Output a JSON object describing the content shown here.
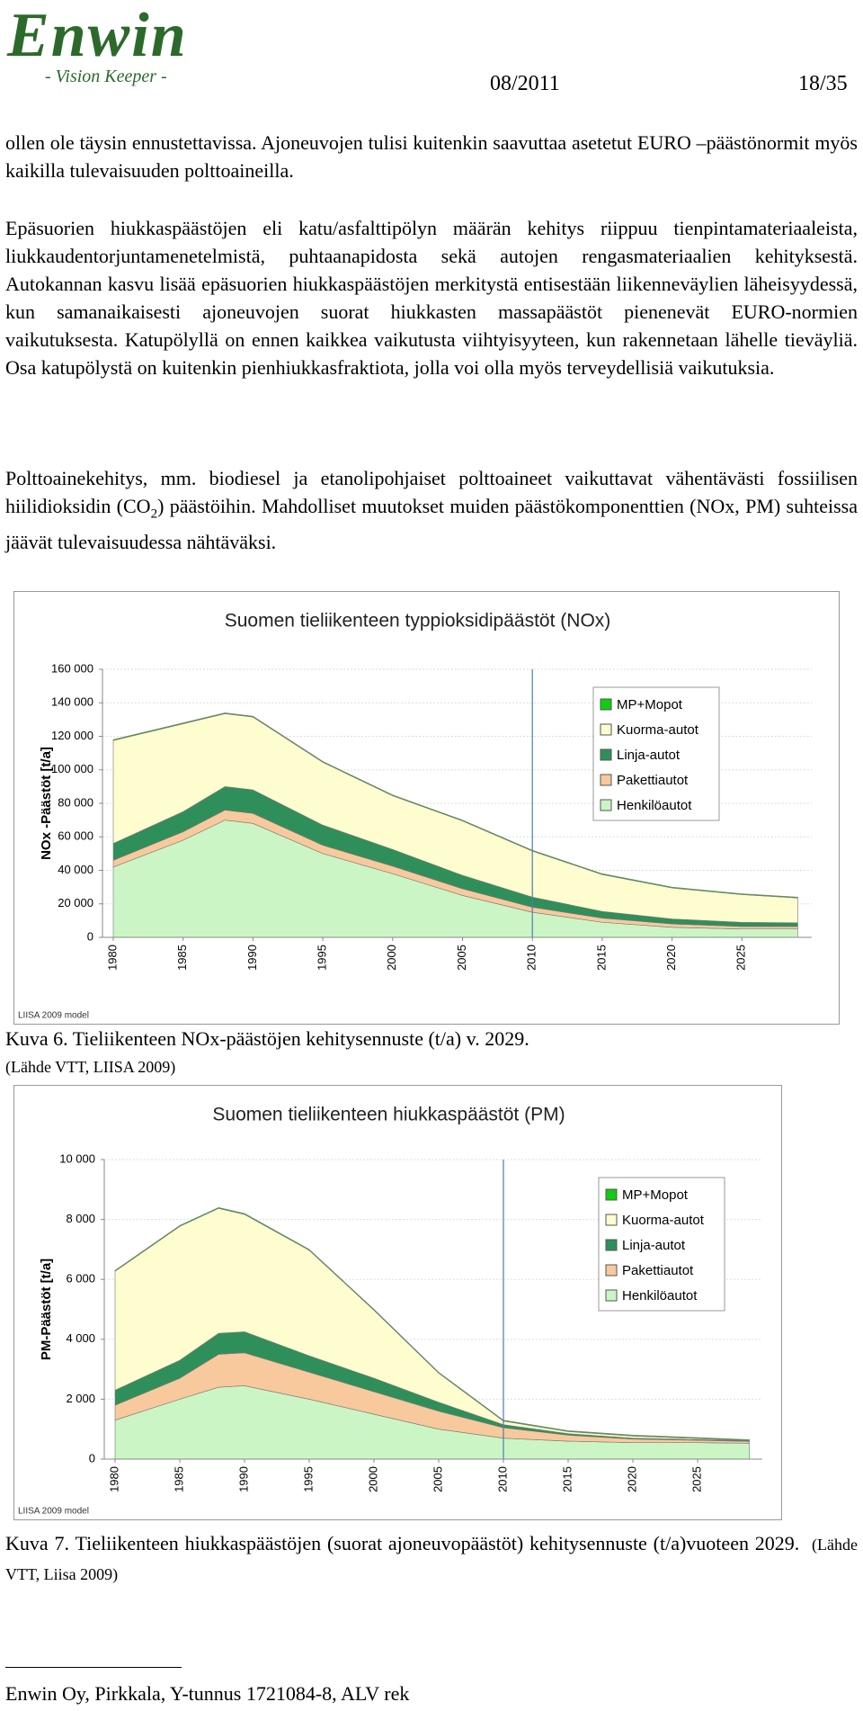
{
  "header": {
    "logo": "Enwin",
    "tagline": "- Vision Keeper -",
    "date": "08/2011",
    "page": "18/35"
  },
  "paragraphs": [
    "ollen ole täysin ennustettavissa. Ajoneuvojen tulisi kuitenkin saavuttaa asetetut EURO –päästönormit myös kaikilla tulevaisuuden polttoaineilla.",
    "Epäsuorien hiukkaspäästöjen eli katu/asfalttipölyn määrän kehitys riippuu tienpintamateriaaleista, liukkaudentorjuntamenetelmistä, puhtaanapidosta sekä autojen rengasmateriaalien kehityksestä. Autokannan kasvu lisää epäsuorien hiukkaspäästöjen merkitystä entisestään liikenneväylien läheisyydessä, kun samanaikaisesti ajoneuvojen suorat hiukkasten massapäästöt pienenevät EURO-normien vaikutuksesta. Katupölyllä on ennen kaikkea vaikutusta viihtyisyyteen, kun rakennetaan lähelle tieväyliä. Osa katupölystä on kuitenkin pienhiukkasfraktiota, jolla voi olla myös terveydellisiä vaikutuksia.",
    {
      "before": "Polttoainekehitys, mm. biodiesel ja etanolipohjaiset polttoaineet vaikuttavat vähentävästi fossiilisen hiilidioksidin (CO",
      "sub": "2",
      "after": ") päästöihin. Mahdolliset muutokset muiden päästökomponenttien (NOx, PM) suhteissa jäävät tulevaisuudessa nähtäväksi."
    }
  ],
  "chart_data": [
    {
      "type": "stacked-area",
      "title": "Suomen tieliikenteen typpioksidipäästöt (NOx)",
      "y_label": "NOx -Päästöt [t/a]",
      "note": "LIISA 2009 model",
      "x": [
        1980,
        1985,
        1988,
        1990,
        1995,
        2000,
        2005,
        2010,
        2015,
        2020,
        2025,
        2029
      ],
      "xlim": [
        1980,
        2030
      ],
      "xticks": [
        1980,
        1985,
        1990,
        1995,
        2000,
        2005,
        2010,
        2015,
        2020,
        2025
      ],
      "ylim": [
        0,
        160000
      ],
      "yticks": [
        0,
        {
          "value": 20000,
          "label": "20 000"
        },
        {
          "value": 40000,
          "label": "40 000"
        },
        {
          "value": 60000,
          "label": "60 000"
        },
        {
          "value": 80000,
          "label": "80 000"
        },
        {
          "value": 100000,
          "label": "100 000"
        },
        {
          "value": 120000,
          "label": "120 000"
        },
        {
          "value": 140000,
          "label": "140 000"
        },
        {
          "value": 160000,
          "label": "160 000"
        }
      ],
      "grid": true,
      "legend": "top-right",
      "reference_x": 2010,
      "series": [
        {
          "name": "Henkilöautot",
          "color": "#ccf5c6",
          "values": [
            42000,
            58000,
            70000,
            68000,
            50000,
            38000,
            25000,
            15000,
            9000,
            6000,
            5000,
            5000
          ]
        },
        {
          "name": "Pakettiautot",
          "color": "#f8c99c",
          "values": [
            4000,
            5000,
            6000,
            6000,
            5000,
            4500,
            4000,
            3000,
            2500,
            2000,
            1500,
            1500
          ]
        },
        {
          "name": "Linja-autot",
          "color": "#2f8f5a",
          "values": [
            10000,
            12000,
            14000,
            14000,
            12000,
            10000,
            8000,
            6000,
            4000,
            3000,
            2500,
            2200
          ]
        },
        {
          "name": "Kuorma-autot",
          "color": "#fdfdcf",
          "values": [
            61500,
            52500,
            43500,
            43500,
            37500,
            32000,
            32500,
            27500,
            22000,
            18500,
            16500,
            14800
          ]
        },
        {
          "name": "MP+Mopot",
          "color": "#11cc11",
          "values": [
            500,
            500,
            500,
            500,
            500,
            500,
            500,
            500,
            500,
            500,
            500,
            500
          ]
        }
      ]
    },
    {
      "type": "stacked-area",
      "title": "Suomen tieliikenteen hiukkaspäästöt (PM)",
      "y_label": "PM-Päästöt [t/a]",
      "note": "LIISA 2009 model",
      "x": [
        1980,
        1985,
        1988,
        1990,
        1995,
        2000,
        2005,
        2010,
        2015,
        2020,
        2025,
        2029
      ],
      "xlim": [
        1980,
        2030
      ],
      "xticks": [
        1980,
        1985,
        1990,
        1995,
        2000,
        2005,
        2010,
        2015,
        2020,
        2025
      ],
      "ylim": [
        0,
        10000
      ],
      "yticks": [
        0,
        {
          "value": 2000,
          "label": "2 000"
        },
        {
          "value": 4000,
          "label": "4 000"
        },
        {
          "value": 6000,
          "label": "6 000"
        },
        {
          "value": 8000,
          "label": "8 000"
        },
        {
          "value": 10000,
          "label": "10 000"
        }
      ],
      "grid": true,
      "legend": "top-right",
      "reference_x": 2010,
      "series": [
        {
          "name": "Henkilöautot",
          "color": "#ccf5c6",
          "values": [
            1300,
            2000,
            2400,
            2450,
            2000,
            1500,
            1000,
            700,
            600,
            550,
            550,
            530
          ]
        },
        {
          "name": "Pakettiautot",
          "color": "#f8c99c",
          "values": [
            500,
            700,
            1100,
            1100,
            900,
            750,
            600,
            350,
            200,
            120,
            80,
            60
          ]
        },
        {
          "name": "Linja-autot",
          "color": "#2f8f5a",
          "values": [
            500,
            600,
            700,
            700,
            550,
            450,
            300,
            100,
            50,
            30,
            20,
            20
          ]
        },
        {
          "name": "Kuorma-autot",
          "color": "#fdfdcf",
          "values": [
            3970,
            4470,
            4170,
            3920,
            3520,
            2270,
            970,
            120,
            70,
            70,
            40,
            10
          ]
        },
        {
          "name": "MP+Mopot",
          "color": "#11cc11",
          "values": [
            30,
            30,
            30,
            30,
            30,
            30,
            30,
            30,
            30,
            30,
            30,
            30
          ]
        }
      ]
    }
  ],
  "captions": [
    {
      "text": "Kuva 6. Tieliikenteen NOx-päästöjen kehitysennuste (t/a) v. 2029.",
      "source": "(Lähde VTT, LIISA 2009)"
    },
    {
      "text": "Kuva 7. Tieliikenteen hiukkaspäästöjen (suorat ajoneuvopäästöt) kehitysennuste (t/a)vuoteen 2029.",
      "source": "(Lähde VTT, Liisa 2009)"
    }
  ],
  "footer": "Enwin Oy, Pirkkala, Y-tunnus 1721084-8, ALV rek"
}
